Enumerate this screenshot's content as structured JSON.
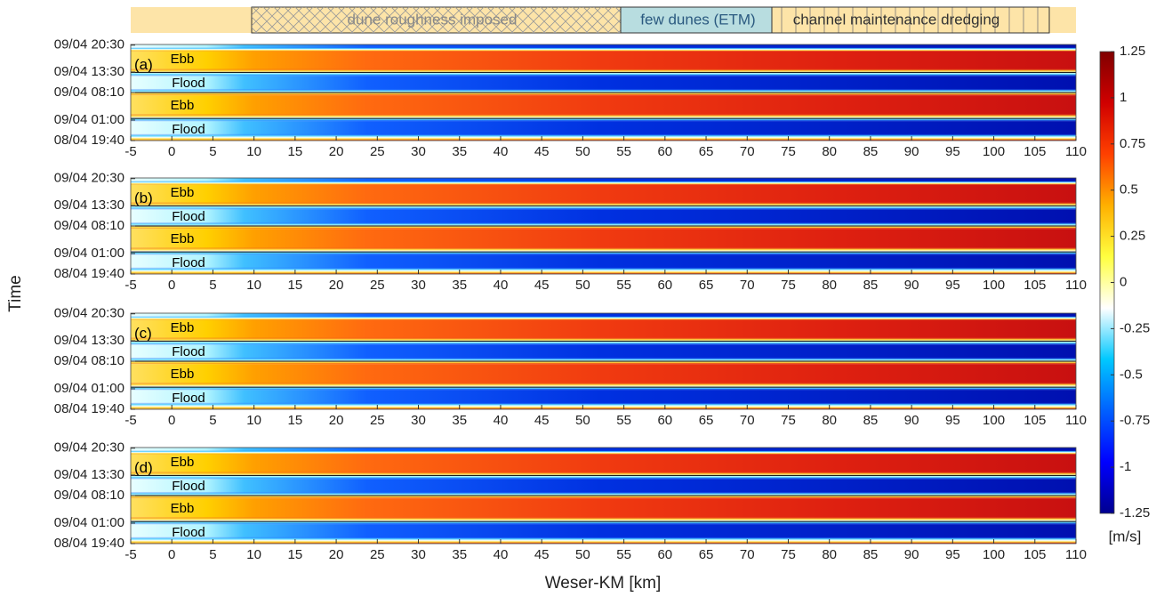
{
  "annotations": [
    "dune roughness imposed",
    "few dunes (ETM)",
    "channel maintenance dredging"
  ],
  "ylabel": "Time",
  "xlabel": "Weser-KM [km]",
  "colorbar": {
    "label": "[m/s]",
    "lim": [
      -1.25,
      1.25
    ],
    "ticks": [
      1.25,
      1,
      0.75,
      0.5,
      0.25,
      0,
      -0.25,
      -0.5,
      -0.75,
      -1,
      -1.25
    ],
    "colormap": [
      "#00008f",
      "#0000ff",
      "#0060ff",
      "#00c8ff",
      "#ffffff",
      "#ffff40",
      "#ffb000",
      "#ff4000",
      "#d00000",
      "#800000"
    ]
  },
  "chart_data": [
    {
      "type": "heatmap",
      "panel_label": "(a)",
      "region_labels": [
        "Ebb",
        "Flood",
        "Ebb",
        "Flood"
      ],
      "xlim": [
        -5,
        110
      ],
      "xticks": [
        -5,
        0,
        5,
        10,
        15,
        20,
        25,
        30,
        35,
        40,
        45,
        50,
        55,
        60,
        65,
        70,
        75,
        80,
        85,
        90,
        95,
        100,
        105,
        110
      ],
      "ylim": [
        0,
        25
      ],
      "yticks": [
        {
          "value": 0,
          "label": "08/04 19:40"
        },
        {
          "value": 5.33,
          "label": "09/04 01:00"
        },
        {
          "value": 12.5,
          "label": "09/04 08:10"
        },
        {
          "value": 17.83,
          "label": "09/04 13:30"
        },
        {
          "value": 24.83,
          "label": "09/04 20:30"
        }
      ]
    },
    {
      "type": "heatmap",
      "panel_label": "(b)",
      "region_labels": [
        "Ebb",
        "Flood",
        "Ebb",
        "Flood"
      ],
      "xlim": [
        -5,
        110
      ],
      "xticks": [
        -5,
        0,
        5,
        10,
        15,
        20,
        25,
        30,
        35,
        40,
        45,
        50,
        55,
        60,
        65,
        70,
        75,
        80,
        85,
        90,
        95,
        100,
        105,
        110
      ],
      "ylim": [
        0,
        25
      ],
      "yticks": [
        {
          "value": 0,
          "label": "08/04 19:40"
        },
        {
          "value": 5.33,
          "label": "09/04 01:00"
        },
        {
          "value": 12.5,
          "label": "09/04 08:10"
        },
        {
          "value": 17.83,
          "label": "09/04 13:30"
        },
        {
          "value": 24.83,
          "label": "09/04 20:30"
        }
      ]
    },
    {
      "type": "heatmap",
      "panel_label": "(c)",
      "region_labels": [
        "Ebb",
        "Flood",
        "Ebb",
        "Flood"
      ],
      "xlim": [
        -5,
        110
      ],
      "xticks": [
        -5,
        0,
        5,
        10,
        15,
        20,
        25,
        30,
        35,
        40,
        45,
        50,
        55,
        60,
        65,
        70,
        75,
        80,
        85,
        90,
        95,
        100,
        105,
        110
      ],
      "ylim": [
        0,
        25
      ],
      "yticks": [
        {
          "value": 0,
          "label": "08/04 19:40"
        },
        {
          "value": 5.33,
          "label": "09/04 01:00"
        },
        {
          "value": 12.5,
          "label": "09/04 08:10"
        },
        {
          "value": 17.83,
          "label": "09/04 13:30"
        },
        {
          "value": 24.83,
          "label": "09/04 20:30"
        }
      ]
    },
    {
      "type": "heatmap",
      "panel_label": "(d)",
      "region_labels": [
        "Ebb",
        "Flood",
        "Ebb",
        "Flood"
      ],
      "xlim": [
        -5,
        110
      ],
      "xticks": [
        -5,
        0,
        5,
        10,
        15,
        20,
        25,
        30,
        35,
        40,
        45,
        50,
        55,
        60,
        65,
        70,
        75,
        80,
        85,
        90,
        95,
        100,
        105,
        110
      ],
      "ylim": [
        0,
        25
      ],
      "yticks": [
        {
          "value": 0,
          "label": "08/04 19:40"
        },
        {
          "value": 5.33,
          "label": "09/04 01:00"
        },
        {
          "value": 12.5,
          "label": "09/04 08:10"
        },
        {
          "value": 17.83,
          "label": "09/04 13:30"
        },
        {
          "value": 24.83,
          "label": "09/04 20:30"
        }
      ]
    }
  ]
}
